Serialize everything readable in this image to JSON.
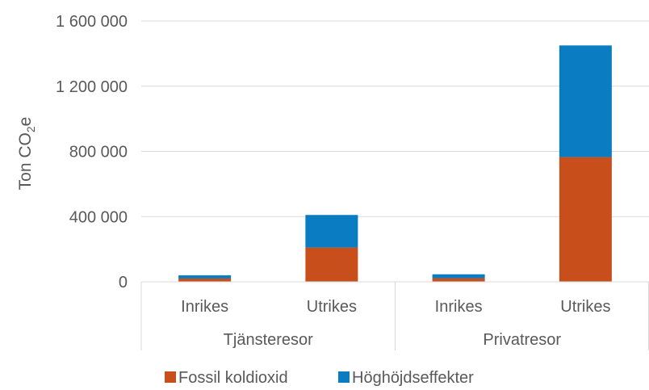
{
  "chart_data": {
    "type": "bar",
    "stacked": true,
    "ylabel_main": "Ton CO",
    "ylabel_sub": "2",
    "ylabel_tail": "e",
    "ylim": [
      0,
      1600000
    ],
    "yticks": [
      0,
      400000,
      800000,
      1200000,
      1600000
    ],
    "ytick_labels": [
      "0",
      "400 000",
      "800 000",
      "1 200 000",
      "1 600 000"
    ],
    "groups": [
      "Tjänsteresor",
      "Privatresor"
    ],
    "categories": [
      "Inrikes",
      "Utrikes",
      "Inrikes",
      "Utrikes"
    ],
    "category_group": [
      0,
      0,
      1,
      1
    ],
    "series": [
      {
        "name": "Fossil koldioxid",
        "color": "#C84F1C",
        "values": [
          20000,
          210000,
          22000,
          765000
        ]
      },
      {
        "name": "Höghöjdseffekter",
        "color": "#0A7CC1",
        "values": [
          20000,
          200000,
          24000,
          685000
        ]
      }
    ],
    "grid": true,
    "legend": "bottom"
  }
}
